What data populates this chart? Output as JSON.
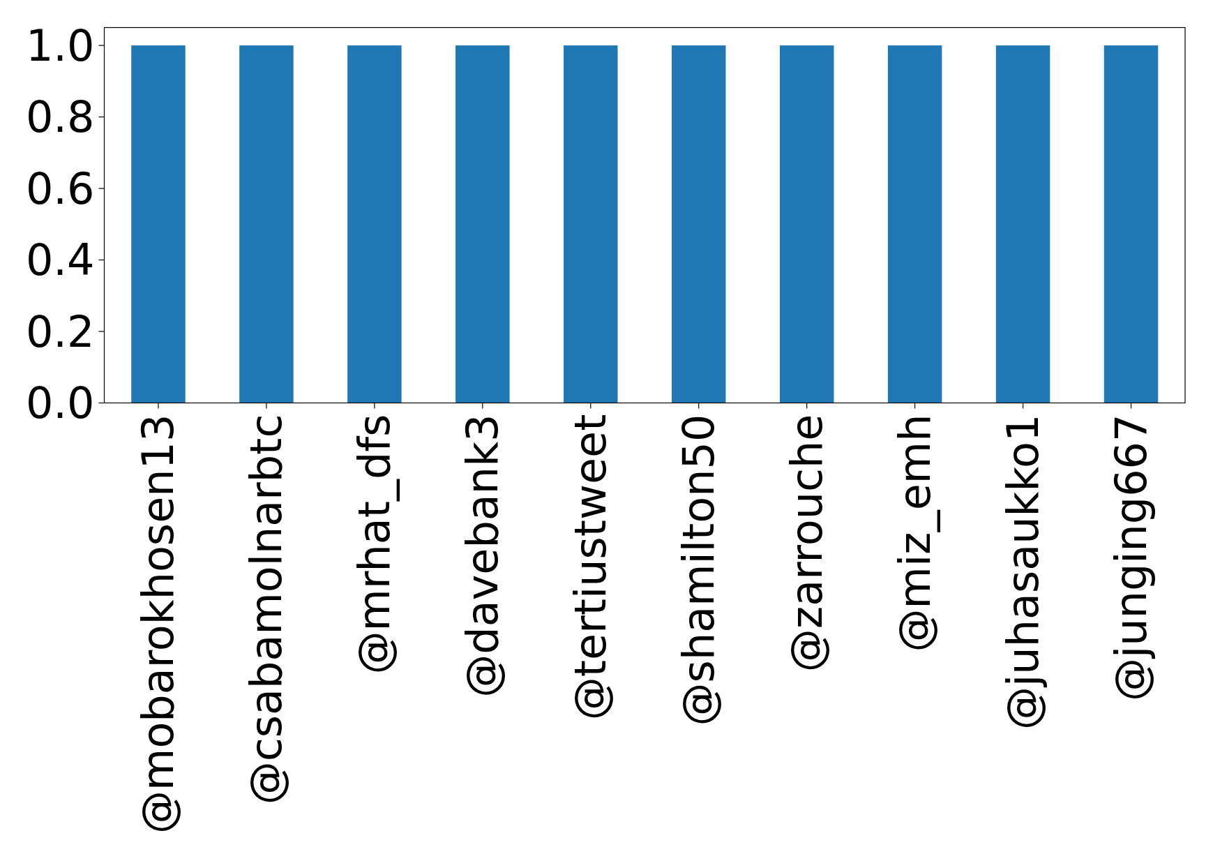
{
  "chart_data": {
    "type": "bar",
    "categories": [
      "@mobarokhosen13",
      "@csabamolnarbtc",
      "@mrhat_dfs",
      "@davebank3",
      "@tertiustweet",
      "@shamilton50",
      "@zarrouche",
      "@miz_emh",
      "@juhasaukko1",
      "@junging667"
    ],
    "values": [
      1,
      1,
      1,
      1,
      1,
      1,
      1,
      1,
      1,
      1
    ],
    "color": "#1f77b4",
    "ylim": [
      0,
      1.05
    ],
    "yticks": [
      {
        "value": 0,
        "label": "0.0"
      },
      {
        "value": 0.2,
        "label": "0.2"
      },
      {
        "value": 0.4,
        "label": "0.4"
      },
      {
        "value": 0.6,
        "label": "0.6"
      },
      {
        "value": 0.8,
        "label": "0.8"
      },
      {
        "value": 1,
        "label": "1.0"
      }
    ]
  }
}
